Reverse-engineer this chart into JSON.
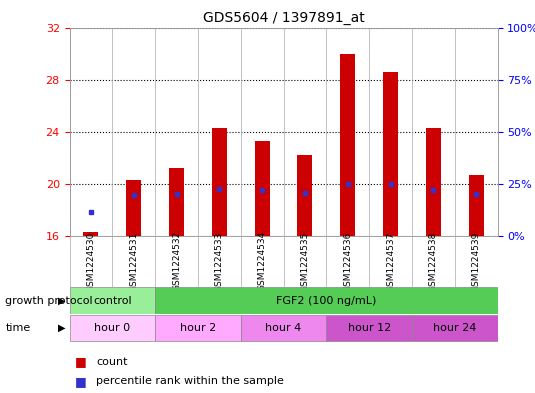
{
  "title": "GDS5604 / 1397891_at",
  "samples": [
    "GSM1224530",
    "GSM1224531",
    "GSM1224532",
    "GSM1224533",
    "GSM1224534",
    "GSM1224535",
    "GSM1224536",
    "GSM1224537",
    "GSM1224538",
    "GSM1224539"
  ],
  "bar_bottoms": [
    16,
    16,
    16,
    16,
    16,
    16,
    16,
    16,
    16,
    16
  ],
  "bar_tops": [
    16.3,
    20.3,
    21.2,
    24.3,
    23.3,
    22.2,
    30.0,
    28.6,
    24.3,
    20.7
  ],
  "blue_values": [
    17.8,
    19.1,
    19.2,
    19.6,
    19.5,
    19.3,
    20.0,
    20.0,
    19.5,
    19.2
  ],
  "ylim_left": [
    16,
    32
  ],
  "ylim_right": [
    0,
    100
  ],
  "yticks_left": [
    16,
    20,
    24,
    28,
    32
  ],
  "yticks_right": [
    0,
    25,
    50,
    75,
    100
  ],
  "ytick_labels_right": [
    "0%",
    "25%",
    "50%",
    "75%",
    "100%"
  ],
  "bar_color": "#cc0000",
  "blue_color": "#3333cc",
  "bar_width": 0.35,
  "grid_color": "#000000",
  "background_color": "#ffffff",
  "growth_protocol_label": "growth protocol",
  "time_label": "time",
  "control_label": "control",
  "fgf2_label": "FGF2 (100 ng/mL)",
  "time_groups": [
    {
      "label": "hour 0",
      "start": 0,
      "end": 2,
      "color": "#ffccff"
    },
    {
      "label": "hour 2",
      "start": 2,
      "end": 4,
      "color": "#ffaaff"
    },
    {
      "label": "hour 4",
      "start": 4,
      "end": 6,
      "color": "#ee88ee"
    },
    {
      "label": "hour 12",
      "start": 6,
      "end": 8,
      "color": "#cc55cc"
    },
    {
      "label": "hour 24",
      "start": 8,
      "end": 10,
      "color": "#cc55cc"
    }
  ],
  "control_color": "#99ee99",
  "fgf2_color": "#55cc55",
  "legend_count_color": "#cc0000",
  "legend_blue_color": "#3333cc",
  "xaxis_bg_color": "#cccccc",
  "n_samples": 10
}
